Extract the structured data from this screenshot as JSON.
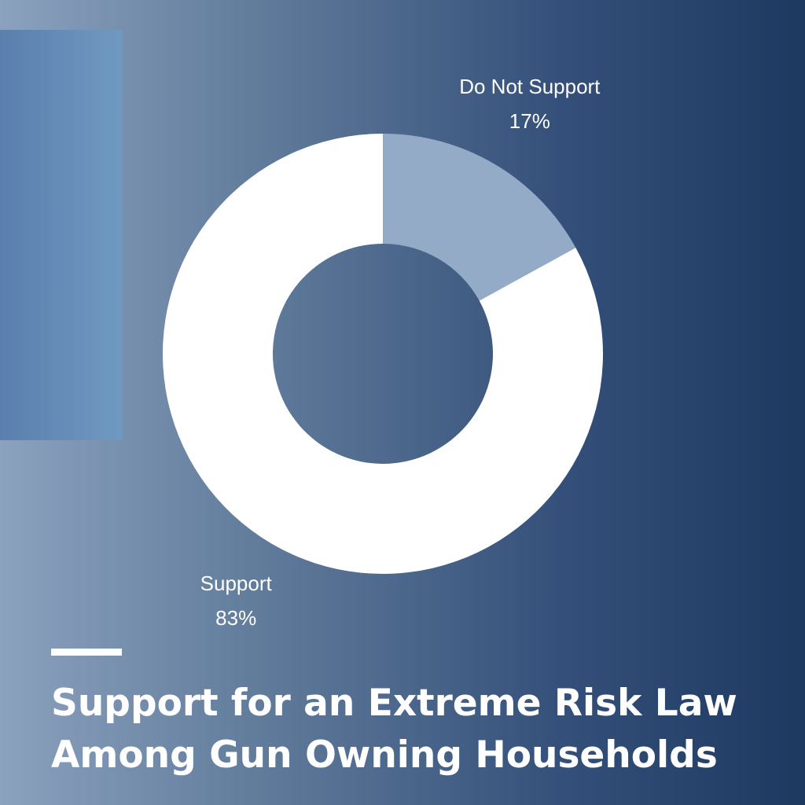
{
  "chart_data": {
    "type": "donut",
    "title": "Support for an Extreme Risk Law Among Gun Owning Households",
    "categories": [
      "Do Not Support",
      "Support"
    ],
    "values": [
      17,
      83
    ],
    "value_labels": [
      "17%",
      "83%"
    ],
    "colors": [
      "#94abc8",
      "#ffffff"
    ]
  }
}
